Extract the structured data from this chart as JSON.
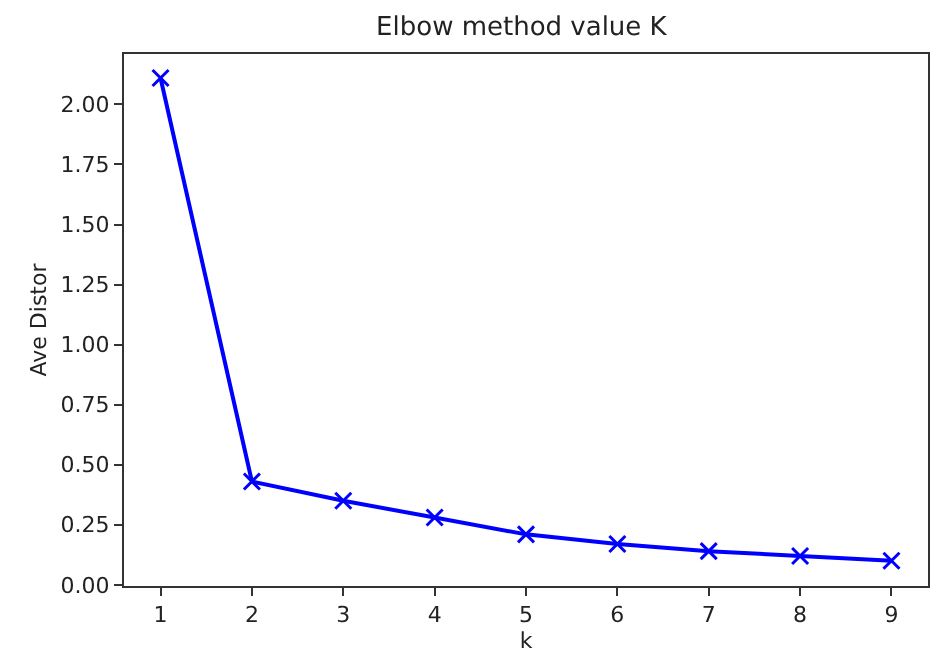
{
  "chart_data": {
    "type": "line",
    "title": "Elbow method value K",
    "xlabel": "k",
    "ylabel": "Ave Distor",
    "x": [
      1,
      2,
      3,
      4,
      5,
      6,
      7,
      8,
      9
    ],
    "series": [
      {
        "color": "#0000ff",
        "values": [
          2.11,
          0.43,
          0.35,
          0.28,
          0.21,
          0.17,
          0.14,
          0.12,
          0.1
        ]
      }
    ],
    "xlim": [
      0.6,
      9.4
    ],
    "xticks": [
      1,
      2,
      3,
      4,
      5,
      6,
      7,
      8,
      9
    ],
    "ylim": [
      -0.005,
      2.21
    ],
    "yticks": [
      {
        "value": 0,
        "label": "0.00"
      },
      {
        "value": 0.25,
        "label": "0.25"
      },
      {
        "value": 0.5,
        "label": "0.50"
      },
      {
        "value": 0.75,
        "label": "0.75"
      },
      {
        "value": 1,
        "label": "1.00"
      },
      {
        "value": 1.25,
        "label": "1.25"
      },
      {
        "value": 1.5,
        "label": "1.50"
      },
      {
        "value": 1.75,
        "label": "1.75"
      },
      {
        "value": 2,
        "label": "2.00"
      }
    ],
    "marker": "cross",
    "line_style": "solid",
    "grid": false,
    "legend": false
  }
}
